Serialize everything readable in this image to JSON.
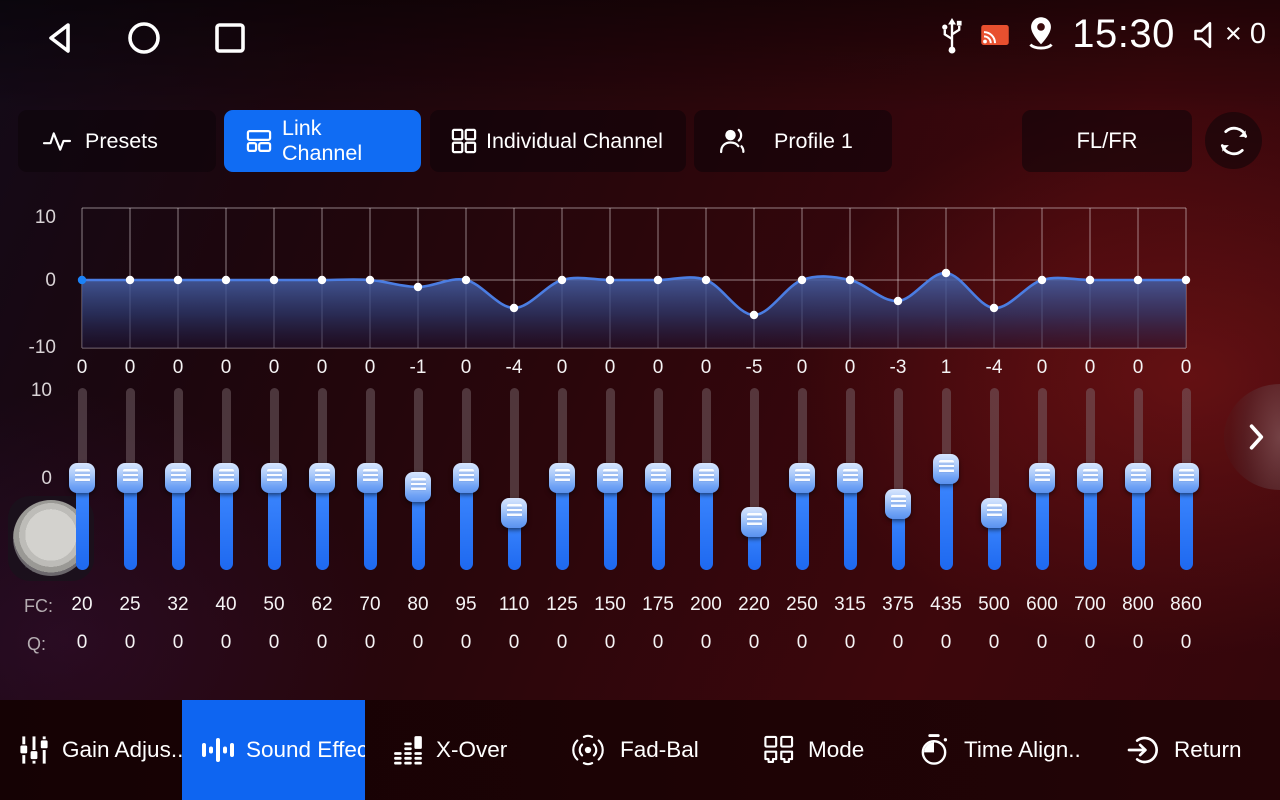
{
  "status_bar": {
    "time": "15:30",
    "volume_label": "× 0",
    "icons": [
      "back-icon",
      "home-icon",
      "recents-icon",
      "usb-icon",
      "cast-icon",
      "location-icon",
      "volume-muted-icon"
    ]
  },
  "tab_bar": {
    "tabs": [
      {
        "label": "Presets",
        "icon": "waveform-icon",
        "active": false
      },
      {
        "label": "Link Channel",
        "icon": "link-channel-icon",
        "active": true
      },
      {
        "label": "Individual Channel",
        "icon": "grid-icon",
        "active": false
      },
      {
        "label": "Profile 1",
        "icon": "profile-icon",
        "active": false
      }
    ],
    "channel_button": "FL/FR",
    "reset_icon": "refresh-icon"
  },
  "equalizer": {
    "y_axis_labels": [
      "10",
      "0",
      "-10"
    ],
    "y_range": [
      -10,
      10
    ],
    "selected_band": 0,
    "gains": [
      0,
      0,
      0,
      0,
      0,
      0,
      0,
      -1,
      0,
      -4,
      0,
      0,
      0,
      0,
      -5,
      0,
      0,
      -3,
      1,
      -4,
      0,
      0,
      0,
      0
    ],
    "fc_label": "FC:",
    "q_label": "Q:",
    "fc_values": [
      20,
      25,
      32,
      40,
      50,
      62,
      70,
      80,
      95,
      110,
      125,
      150,
      175,
      200,
      220,
      250,
      315,
      375,
      435,
      500,
      600,
      700,
      800,
      860
    ],
    "q_values": [
      0,
      0,
      0,
      0,
      0,
      0,
      0,
      0,
      0,
      0,
      0,
      0,
      0,
      0,
      0,
      0,
      0,
      0,
      0,
      0,
      0,
      0,
      0,
      0
    ]
  },
  "bottom_nav": {
    "items": [
      {
        "label": "Gain Adjus..",
        "icon": "gain-adjust-icon",
        "active": false
      },
      {
        "label": "Sound Effect",
        "icon": "sound-effect-icon",
        "active": true
      },
      {
        "label": "X-Over",
        "icon": "crossover-icon",
        "active": false
      },
      {
        "label": "Fad-Bal",
        "icon": "fader-balance-icon",
        "active": false
      },
      {
        "label": "Mode",
        "icon": "mode-icon",
        "active": false
      },
      {
        "label": "Time Align..",
        "icon": "time-align-icon",
        "active": false
      },
      {
        "label": "Return",
        "icon": "return-icon",
        "active": false
      }
    ]
  },
  "colors": {
    "accent_blue": "#106cf3",
    "slider_blue": "#1f6bf2",
    "curve_blue": "#4b7de2",
    "cast_orange": "#e8502f"
  }
}
